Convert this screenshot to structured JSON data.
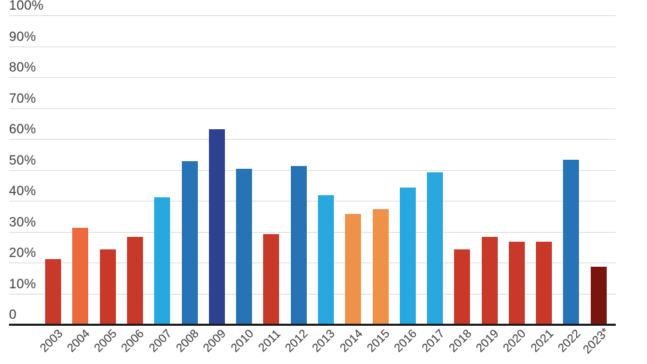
{
  "chart_data": {
    "type": "bar",
    "title": "",
    "xlabel": "",
    "ylabel": "",
    "ylim": [
      0,
      100
    ],
    "grid": true,
    "legend_position": "none",
    "y_ticks": [
      {
        "label": "100%",
        "value": 100
      },
      {
        "label": "90%",
        "value": 90
      },
      {
        "label": "80%",
        "value": 80
      },
      {
        "label": "70%",
        "value": 70
      },
      {
        "label": "60%",
        "value": 60
      },
      {
        "label": "50%",
        "value": 50
      },
      {
        "label": "40%",
        "value": 40
      },
      {
        "label": "30%",
        "value": 30
      },
      {
        "label": "20%",
        "value": 20
      },
      {
        "label": "10%",
        "value": 10
      },
      {
        "label": "0",
        "value": 0
      }
    ],
    "categories": [
      "2003",
      "2004",
      "2005",
      "2006",
      "2007",
      "2008",
      "2009",
      "2010",
      "2011",
      "2012",
      "2013",
      "2014",
      "2015",
      "2016",
      "2017",
      "2018",
      "2019",
      "2020",
      "2021",
      "2022",
      "2023*"
    ],
    "values": [
      21,
      31,
      24,
      28,
      41,
      52.5,
      63,
      50,
      29,
      51,
      41.5,
      35.5,
      37,
      44,
      49,
      24,
      28,
      26.5,
      26.5,
      53,
      18.5
    ],
    "bar_colors": [
      "#c9392a",
      "#ec6a3e",
      "#c9392a",
      "#c9392a",
      "#29a8e0",
      "#2673b5",
      "#2c4190",
      "#2673b5",
      "#c9392a",
      "#2673b5",
      "#29a8e0",
      "#f0914a",
      "#f0914a",
      "#29a8e0",
      "#29a8e0",
      "#c9392a",
      "#c9392a",
      "#c9392a",
      "#c9392a",
      "#2673b5",
      "#7a140f"
    ]
  },
  "colors": {
    "background": "#ffffff",
    "gridline": "#d8d8d8",
    "axis_line": "#1b1b1b",
    "y_label_text": "#3d3d3d",
    "x_label_text": "#383838",
    "red": "#c9392a",
    "vermillion": "#ec6a3e",
    "light_orange": "#f0914a",
    "cyan": "#29a8e0",
    "medium_blue": "#2673b5",
    "navy": "#2c4190",
    "maroon": "#7a140f"
  }
}
